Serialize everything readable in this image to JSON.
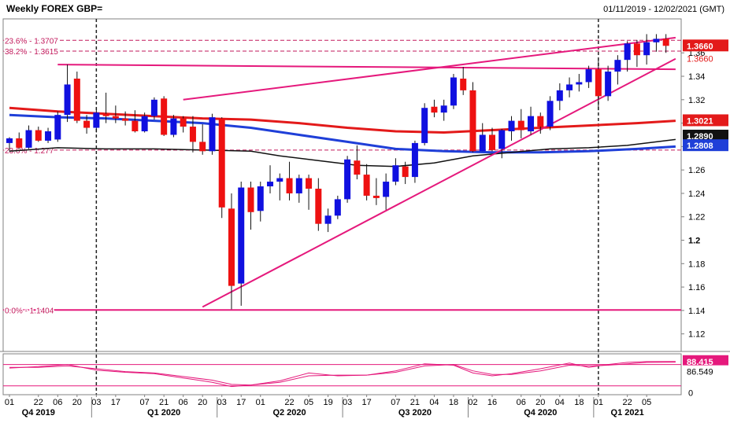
{
  "header": {
    "title": "Weekly FOREX GBP=",
    "date_range": "01/11/2019 - 12/02/2021 (GMT)"
  },
  "colors": {
    "background": "#ffffff",
    "up": "#1010e0",
    "down": "#ee1111",
    "ma_red": "#e31a1a",
    "ma_blue": "#1f3fd8",
    "ma_black": "#111111",
    "trend": "#e5197c",
    "fib": "#c2185b",
    "stoch": "#e5197c",
    "vline": "#222222"
  },
  "chart_data": [
    {
      "type": "candlestick",
      "title": "Weekly FOREX GBP=",
      "ylim": [
        1.105,
        1.385
      ],
      "y_ticks": [
        "1.36",
        "1.34",
        "1.32",
        "1.3",
        "1.28",
        "1.26",
        "1.24",
        "1.22",
        "1.2",
        "1.18",
        "1.16",
        "1.14",
        "1.12"
      ],
      "x_labels": [
        {
          "i": 0,
          "t": "01"
        },
        {
          "i": 3,
          "t": "22"
        },
        {
          "i": 5,
          "t": "06"
        },
        {
          "i": 7,
          "t": "20"
        },
        {
          "i": 9,
          "t": "03"
        },
        {
          "i": 11,
          "t": "17"
        },
        {
          "i": 14,
          "t": "07"
        },
        {
          "i": 16,
          "t": "21"
        },
        {
          "i": 18,
          "t": "06"
        },
        {
          "i": 20,
          "t": "20"
        },
        {
          "i": 22,
          "t": "03"
        },
        {
          "i": 24,
          "t": "17"
        },
        {
          "i": 26,
          "t": "01"
        },
        {
          "i": 29,
          "t": "22"
        },
        {
          "i": 31,
          "t": "05"
        },
        {
          "i": 33,
          "t": "19"
        },
        {
          "i": 35,
          "t": "03"
        },
        {
          "i": 37,
          "t": "17"
        },
        {
          "i": 40,
          "t": "07"
        },
        {
          "i": 42,
          "t": "21"
        },
        {
          "i": 44,
          "t": "04"
        },
        {
          "i": 46,
          "t": "18"
        },
        {
          "i": 48,
          "t": "02"
        },
        {
          "i": 50,
          "t": "16"
        },
        {
          "i": 53,
          "t": "06"
        },
        {
          "i": 55,
          "t": "20"
        },
        {
          "i": 57,
          "t": "04"
        },
        {
          "i": 59,
          "t": "18"
        },
        {
          "i": 61,
          "t": "01"
        },
        {
          "i": 64,
          "t": "22"
        },
        {
          "i": 66,
          "t": "05"
        }
      ],
      "quarters": [
        {
          "i": 3,
          "t": "Q4 2019"
        },
        {
          "i": 16,
          "t": "Q1 2020"
        },
        {
          "i": 29,
          "t": "Q2 2020"
        },
        {
          "i": 42,
          "t": "Q3 2020"
        },
        {
          "i": 55,
          "t": "Q4 2020"
        },
        {
          "i": 64,
          "t": "Q1 2021"
        }
      ],
      "quarter_separators": [
        9,
        22,
        35,
        48,
        61
      ],
      "dashed_vlines": [
        9,
        61
      ],
      "candles": [
        {
          "o": 1.283,
          "h": 1.288,
          "l": 1.276,
          "c": 1.287
        },
        {
          "o": 1.287,
          "h": 1.292,
          "l": 1.278,
          "c": 1.279
        },
        {
          "o": 1.279,
          "h": 1.298,
          "l": 1.278,
          "c": 1.294
        },
        {
          "o": 1.294,
          "h": 1.297,
          "l": 1.284,
          "c": 1.285
        },
        {
          "o": 1.285,
          "h": 1.296,
          "l": 1.283,
          "c": 1.293
        },
        {
          "o": 1.286,
          "h": 1.31,
          "l": 1.284,
          "c": 1.307
        },
        {
          "o": 1.307,
          "h": 1.35,
          "l": 1.301,
          "c": 1.333
        },
        {
          "o": 1.338,
          "h": 1.344,
          "l": 1.3,
          "c": 1.302
        },
        {
          "o": 1.302,
          "h": 1.307,
          "l": 1.291,
          "c": 1.296
        },
        {
          "o": 1.296,
          "h": 1.313,
          "l": 1.292,
          "c": 1.309
        },
        {
          "o": 1.308,
          "h": 1.326,
          "l": 1.3,
          "c": 1.306
        },
        {
          "o": 1.306,
          "h": 1.315,
          "l": 1.3,
          "c": 1.304
        },
        {
          "o": 1.304,
          "h": 1.31,
          "l": 1.298,
          "c": 1.302
        },
        {
          "o": 1.302,
          "h": 1.311,
          "l": 1.292,
          "c": 1.293
        },
        {
          "o": 1.293,
          "h": 1.309,
          "l": 1.292,
          "c": 1.306
        },
        {
          "o": 1.306,
          "h": 1.322,
          "l": 1.303,
          "c": 1.32
        },
        {
          "o": 1.321,
          "h": 1.323,
          "l": 1.289,
          "c": 1.29
        },
        {
          "o": 1.29,
          "h": 1.307,
          "l": 1.288,
          "c": 1.304
        },
        {
          "o": 1.304,
          "h": 1.306,
          "l": 1.292,
          "c": 1.297
        },
        {
          "o": 1.297,
          "h": 1.306,
          "l": 1.275,
          "c": 1.284
        },
        {
          "o": 1.284,
          "h": 1.299,
          "l": 1.273,
          "c": 1.276
        },
        {
          "o": 1.276,
          "h": 1.308,
          "l": 1.273,
          "c": 1.305
        },
        {
          "o": 1.304,
          "h": 1.305,
          "l": 1.219,
          "c": 1.228
        },
        {
          "o": 1.227,
          "h": 1.24,
          "l": 1.141,
          "c": 1.161
        },
        {
          "o": 1.163,
          "h": 1.25,
          "l": 1.144,
          "c": 1.245
        },
        {
          "o": 1.245,
          "h": 1.25,
          "l": 1.209,
          "c": 1.224
        },
        {
          "o": 1.225,
          "h": 1.25,
          "l": 1.216,
          "c": 1.246
        },
        {
          "o": 1.246,
          "h": 1.264,
          "l": 1.24,
          "c": 1.25
        },
        {
          "o": 1.25,
          "h": 1.257,
          "l": 1.234,
          "c": 1.253
        },
        {
          "o": 1.253,
          "h": 1.267,
          "l": 1.234,
          "c": 1.24
        },
        {
          "o": 1.24,
          "h": 1.256,
          "l": 1.232,
          "c": 1.253
        },
        {
          "o": 1.253,
          "h": 1.256,
          "l": 1.226,
          "c": 1.244
        },
        {
          "o": 1.244,
          "h": 1.253,
          "l": 1.208,
          "c": 1.214
        },
        {
          "o": 1.214,
          "h": 1.227,
          "l": 1.207,
          "c": 1.221
        },
        {
          "o": 1.221,
          "h": 1.238,
          "l": 1.218,
          "c": 1.235
        },
        {
          "o": 1.235,
          "h": 1.272,
          "l": 1.232,
          "c": 1.269
        },
        {
          "o": 1.268,
          "h": 1.281,
          "l": 1.252,
          "c": 1.256
        },
        {
          "o": 1.256,
          "h": 1.265,
          "l": 1.234,
          "c": 1.238
        },
        {
          "o": 1.238,
          "h": 1.253,
          "l": 1.23,
          "c": 1.236
        },
        {
          "o": 1.237,
          "h": 1.257,
          "l": 1.226,
          "c": 1.25
        },
        {
          "o": 1.25,
          "h": 1.27,
          "l": 1.247,
          "c": 1.264
        },
        {
          "o": 1.263,
          "h": 1.267,
          "l": 1.248,
          "c": 1.254
        },
        {
          "o": 1.254,
          "h": 1.285,
          "l": 1.249,
          "c": 1.283
        },
        {
          "o": 1.283,
          "h": 1.317,
          "l": 1.281,
          "c": 1.313
        },
        {
          "o": 1.314,
          "h": 1.32,
          "l": 1.305,
          "c": 1.309
        },
        {
          "o": 1.309,
          "h": 1.32,
          "l": 1.302,
          "c": 1.315
        },
        {
          "o": 1.315,
          "h": 1.342,
          "l": 1.312,
          "c": 1.339
        },
        {
          "o": 1.338,
          "h": 1.348,
          "l": 1.324,
          "c": 1.328
        },
        {
          "o": 1.328,
          "h": 1.335,
          "l": 1.275,
          "c": 1.276
        },
        {
          "o": 1.276,
          "h": 1.3,
          "l": 1.276,
          "c": 1.29
        },
        {
          "o": 1.29,
          "h": 1.296,
          "l": 1.276,
          "c": 1.277
        },
        {
          "o": 1.278,
          "h": 1.295,
          "l": 1.27,
          "c": 1.294
        },
        {
          "o": 1.293,
          "h": 1.306,
          "l": 1.285,
          "c": 1.302
        },
        {
          "o": 1.302,
          "h": 1.312,
          "l": 1.287,
          "c": 1.294
        },
        {
          "o": 1.293,
          "h": 1.314,
          "l": 1.29,
          "c": 1.306
        },
        {
          "o": 1.306,
          "h": 1.309,
          "l": 1.291,
          "c": 1.297
        },
        {
          "o": 1.297,
          "h": 1.323,
          "l": 1.294,
          "c": 1.319
        },
        {
          "o": 1.319,
          "h": 1.334,
          "l": 1.311,
          "c": 1.328
        },
        {
          "o": 1.328,
          "h": 1.339,
          "l": 1.322,
          "c": 1.333
        },
        {
          "o": 1.333,
          "h": 1.342,
          "l": 1.327,
          "c": 1.335
        },
        {
          "o": 1.335,
          "h": 1.349,
          "l": 1.33,
          "c": 1.346
        },
        {
          "o": 1.346,
          "h": 1.354,
          "l": 1.311,
          "c": 1.323
        },
        {
          "o": 1.323,
          "h": 1.349,
          "l": 1.319,
          "c": 1.344
        },
        {
          "o": 1.344,
          "h": 1.358,
          "l": 1.333,
          "c": 1.354
        },
        {
          "o": 1.354,
          "h": 1.37,
          "l": 1.344,
          "c": 1.368
        },
        {
          "o": 1.368,
          "h": 1.371,
          "l": 1.348,
          "c": 1.358
        },
        {
          "o": 1.358,
          "h": 1.376,
          "l": 1.35,
          "c": 1.369
        },
        {
          "o": 1.369,
          "h": 1.376,
          "l": 1.361,
          "c": 1.372
        },
        {
          "o": 1.372,
          "h": 1.376,
          "l": 1.36,
          "c": 1.366
        }
      ],
      "ma_red": [
        [
          0,
          1.313
        ],
        [
          5,
          1.31
        ],
        [
          10,
          1.308
        ],
        [
          15,
          1.306
        ],
        [
          20,
          1.304
        ],
        [
          25,
          1.303
        ],
        [
          30,
          1.3
        ],
        [
          35,
          1.296
        ],
        [
          40,
          1.293
        ],
        [
          45,
          1.292
        ],
        [
          50,
          1.294
        ],
        [
          55,
          1.296
        ],
        [
          60,
          1.298
        ],
        [
          65,
          1.3
        ],
        [
          69,
          1.302
        ]
      ],
      "ma_blue": [
        [
          0,
          1.307
        ],
        [
          5,
          1.305
        ],
        [
          10,
          1.304
        ],
        [
          15,
          1.302
        ],
        [
          20,
          1.3
        ],
        [
          25,
          1.296
        ],
        [
          30,
          1.29
        ],
        [
          35,
          1.284
        ],
        [
          40,
          1.278
        ],
        [
          45,
          1.276
        ],
        [
          50,
          1.275
        ],
        [
          55,
          1.275
        ],
        [
          60,
          1.276
        ],
        [
          65,
          1.278
        ],
        [
          69,
          1.28
        ]
      ],
      "ma_black": [
        [
          0,
          1.276
        ],
        [
          5,
          1.279
        ],
        [
          10,
          1.278
        ],
        [
          15,
          1.278
        ],
        [
          20,
          1.277
        ],
        [
          25,
          1.276
        ],
        [
          28,
          1.272
        ],
        [
          32,
          1.268
        ],
        [
          36,
          1.264
        ],
        [
          40,
          1.263
        ],
        [
          44,
          1.266
        ],
        [
          48,
          1.272
        ],
        [
          52,
          1.275
        ],
        [
          56,
          1.278
        ],
        [
          60,
          1.279
        ],
        [
          64,
          1.281
        ],
        [
          69,
          1.286
        ]
      ],
      "trendlines": [
        [
          [
            5,
            1.35
          ],
          [
            69,
            1.346
          ]
        ],
        [
          [
            18,
            1.32
          ],
          [
            69,
            1.373
          ]
        ],
        [
          [
            20,
            1.143
          ],
          [
            69,
            1.355
          ]
        ]
      ],
      "fib_levels": [
        {
          "label": "23.6% - 1.3707",
          "value": 1.3707
        },
        {
          "label": "38.2% - 1.3615",
          "value": 1.3615
        },
        {
          "label": "23.6% - 1.277",
          "value": 1.277
        },
        {
          "label": "0.0% - 1.1404",
          "value": 1.1404
        }
      ],
      "price_tags": [
        {
          "text": "1.3660",
          "value": 1.366,
          "color": "#e31a1a"
        },
        {
          "text": "1.3021",
          "value": 1.3021,
          "color": "#e31a1a"
        },
        {
          "text": "1.2890",
          "value": 1.289,
          "color": "#111111"
        },
        {
          "text": "1.2808",
          "value": 1.2808,
          "color": "#1f3fd8"
        }
      ],
      "extra_labels": [
        {
          "text": "1.3660",
          "value": 1.366
        }
      ]
    },
    {
      "type": "line",
      "title": "Stochastic",
      "ylim": [
        -5,
        110
      ],
      "y_ticks": [
        "0"
      ],
      "levels": [
        80,
        20
      ],
      "series": [
        {
          "values": [
            [
              0,
              70
            ],
            [
              3,
              74
            ],
            [
              6,
              80
            ],
            [
              9,
              64
            ],
            [
              12,
              58
            ],
            [
              15,
              54
            ],
            [
              18,
              42
            ],
            [
              21,
              30
            ],
            [
              23,
              18
            ],
            [
              25,
              22
            ],
            [
              28,
              34
            ],
            [
              31,
              56
            ],
            [
              34,
              48
            ],
            [
              37,
              50
            ],
            [
              40,
              62
            ],
            [
              43,
              82
            ],
            [
              46,
              78
            ],
            [
              48,
              56
            ],
            [
              50,
              48
            ],
            [
              52,
              54
            ],
            [
              55,
              68
            ],
            [
              58,
              84
            ],
            [
              60,
              72
            ],
            [
              62,
              80
            ],
            [
              64,
              86
            ],
            [
              66,
              88
            ],
            [
              69,
              88.4
            ]
          ]
        },
        {
          "values": [
            [
              0,
              72
            ],
            [
              3,
              72
            ],
            [
              6,
              76
            ],
            [
              9,
              68
            ],
            [
              12,
              60
            ],
            [
              15,
              56
            ],
            [
              18,
              46
            ],
            [
              21,
              36
            ],
            [
              23,
              24
            ],
            [
              25,
              22
            ],
            [
              28,
              30
            ],
            [
              31,
              48
            ],
            [
              34,
              50
            ],
            [
              37,
              50
            ],
            [
              40,
              58
            ],
            [
              43,
              76
            ],
            [
              46,
              80
            ],
            [
              48,
              62
            ],
            [
              50,
              52
            ],
            [
              52,
              52
            ],
            [
              55,
              62
            ],
            [
              58,
              78
            ],
            [
              60,
              76
            ],
            [
              62,
              78
            ],
            [
              64,
              82
            ],
            [
              66,
              86
            ],
            [
              69,
              86.5
            ]
          ]
        }
      ],
      "tags": [
        {
          "text": "88.415",
          "value": 88.415
        },
        {
          "text": "86.549",
          "value": 86.549
        }
      ]
    }
  ]
}
